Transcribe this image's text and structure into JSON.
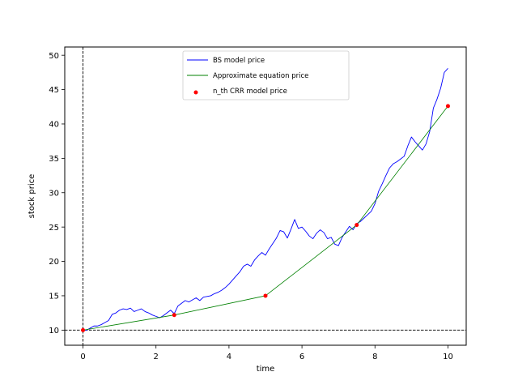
{
  "chart_data": {
    "type": "line",
    "title": "",
    "xlabel": "time",
    "ylabel": "stock price",
    "xlim": [
      -0.5,
      10.5
    ],
    "ylim": [
      7.8,
      51.2
    ],
    "xticks": [
      0,
      2,
      4,
      6,
      8,
      10
    ],
    "yticks": [
      10,
      15,
      20,
      25,
      30,
      35,
      40,
      45,
      50
    ],
    "grid": false,
    "legend_position": "upper-center",
    "reference_lines": {
      "horizontal_y": 10,
      "vertical_x": 0,
      "style": "dashed",
      "color": "#000000"
    },
    "series": [
      {
        "name": "BS model price",
        "kind": "line",
        "color": "#0000ff",
        "x": [
          0,
          0.1,
          0.2,
          0.3,
          0.4,
          0.5,
          0.6,
          0.7,
          0.8,
          0.9,
          1.0,
          1.1,
          1.2,
          1.3,
          1.4,
          1.5,
          1.6,
          1.7,
          1.8,
          1.9,
          2.0,
          2.1,
          2.2,
          2.3,
          2.4,
          2.5,
          2.6,
          2.7,
          2.8,
          2.9,
          3.0,
          3.1,
          3.2,
          3.3,
          3.4,
          3.5,
          3.6,
          3.7,
          3.8,
          3.9,
          4.0,
          4.1,
          4.2,
          4.3,
          4.4,
          4.5,
          4.6,
          4.7,
          4.8,
          4.9,
          5.0,
          5.1,
          5.2,
          5.3,
          5.4,
          5.5,
          5.6,
          5.7,
          5.8,
          5.9,
          6.0,
          6.1,
          6.2,
          6.3,
          6.4,
          6.5,
          6.6,
          6.7,
          6.8,
          6.9,
          7.0,
          7.1,
          7.2,
          7.3,
          7.4,
          7.5,
          7.6,
          7.7,
          7.8,
          7.9,
          8.0,
          8.1,
          8.2,
          8.3,
          8.4,
          8.5,
          8.6,
          8.7,
          8.8,
          8.9,
          9.0,
          9.1,
          9.2,
          9.3,
          9.4,
          9.5,
          9.6,
          9.7,
          9.8,
          9.9,
          10.0
        ],
        "y": [
          10.0,
          10.0,
          10.3,
          10.6,
          10.6,
          10.8,
          11.1,
          11.4,
          12.3,
          12.5,
          12.9,
          13.1,
          13.0,
          13.2,
          12.7,
          12.9,
          13.1,
          12.7,
          12.5,
          12.2,
          12.0,
          11.8,
          12.1,
          12.5,
          12.9,
          12.4,
          13.5,
          13.9,
          14.3,
          14.1,
          14.4,
          14.7,
          14.3,
          14.8,
          14.9,
          15.0,
          15.3,
          15.5,
          15.8,
          16.2,
          16.7,
          17.3,
          17.9,
          18.5,
          19.3,
          19.6,
          19.3,
          20.2,
          20.8,
          21.3,
          20.9,
          21.8,
          22.6,
          23.4,
          24.5,
          24.3,
          23.4,
          24.7,
          26.1,
          24.8,
          25.0,
          24.4,
          23.7,
          23.3,
          24.1,
          24.6,
          24.2,
          23.3,
          23.5,
          22.5,
          22.3,
          23.5,
          24.3,
          25.1,
          24.6,
          25.5,
          25.8,
          26.3,
          26.8,
          27.3,
          28.4,
          30.2,
          31.3,
          32.5,
          33.6,
          34.2,
          34.5,
          34.9,
          35.3,
          36.8,
          38.1,
          37.4,
          36.8,
          36.2,
          37.1,
          38.9,
          42.3,
          43.6,
          45.2,
          47.5,
          48.1
        ]
      },
      {
        "name": "Approximate equation price",
        "kind": "line",
        "color": "#008000",
        "x": [
          0,
          2.5,
          5.0,
          7.5,
          10.0
        ],
        "y": [
          10.0,
          12.2,
          15.0,
          25.3,
          42.6
        ]
      },
      {
        "name": "n_th CRR model price",
        "kind": "scatter",
        "color": "#ff0000",
        "x": [
          0,
          2.5,
          5.0,
          7.5,
          10.0
        ],
        "y": [
          10.0,
          12.2,
          15.0,
          25.3,
          42.6
        ]
      }
    ]
  }
}
